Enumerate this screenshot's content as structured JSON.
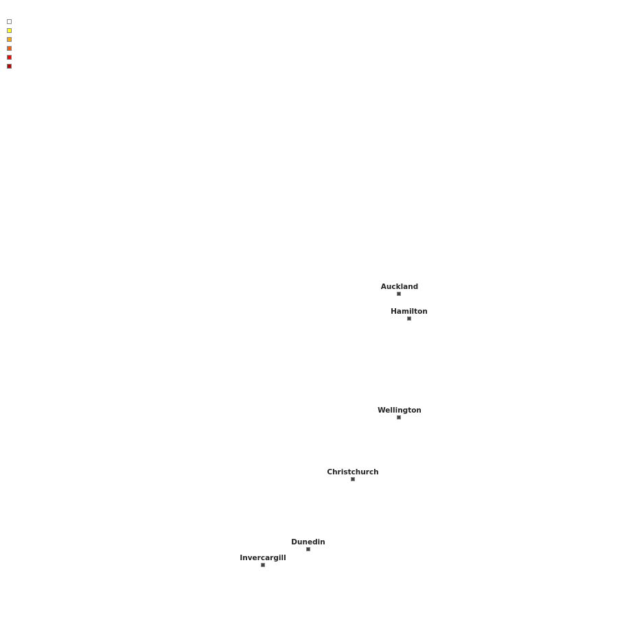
{
  "legend": {
    "colors": [
      "#ffffff",
      "#ffff00",
      "#ffa500",
      "#ff5a00",
      "#ff0000",
      "#c00000"
    ]
  },
  "cities": [
    {
      "name": "Auckland"
    },
    {
      "name": "Hamilton"
    },
    {
      "name": "Wellington"
    },
    {
      "name": "Christchurch"
    },
    {
      "name": "Dunedin"
    },
    {
      "name": "Invercargill"
    }
  ]
}
